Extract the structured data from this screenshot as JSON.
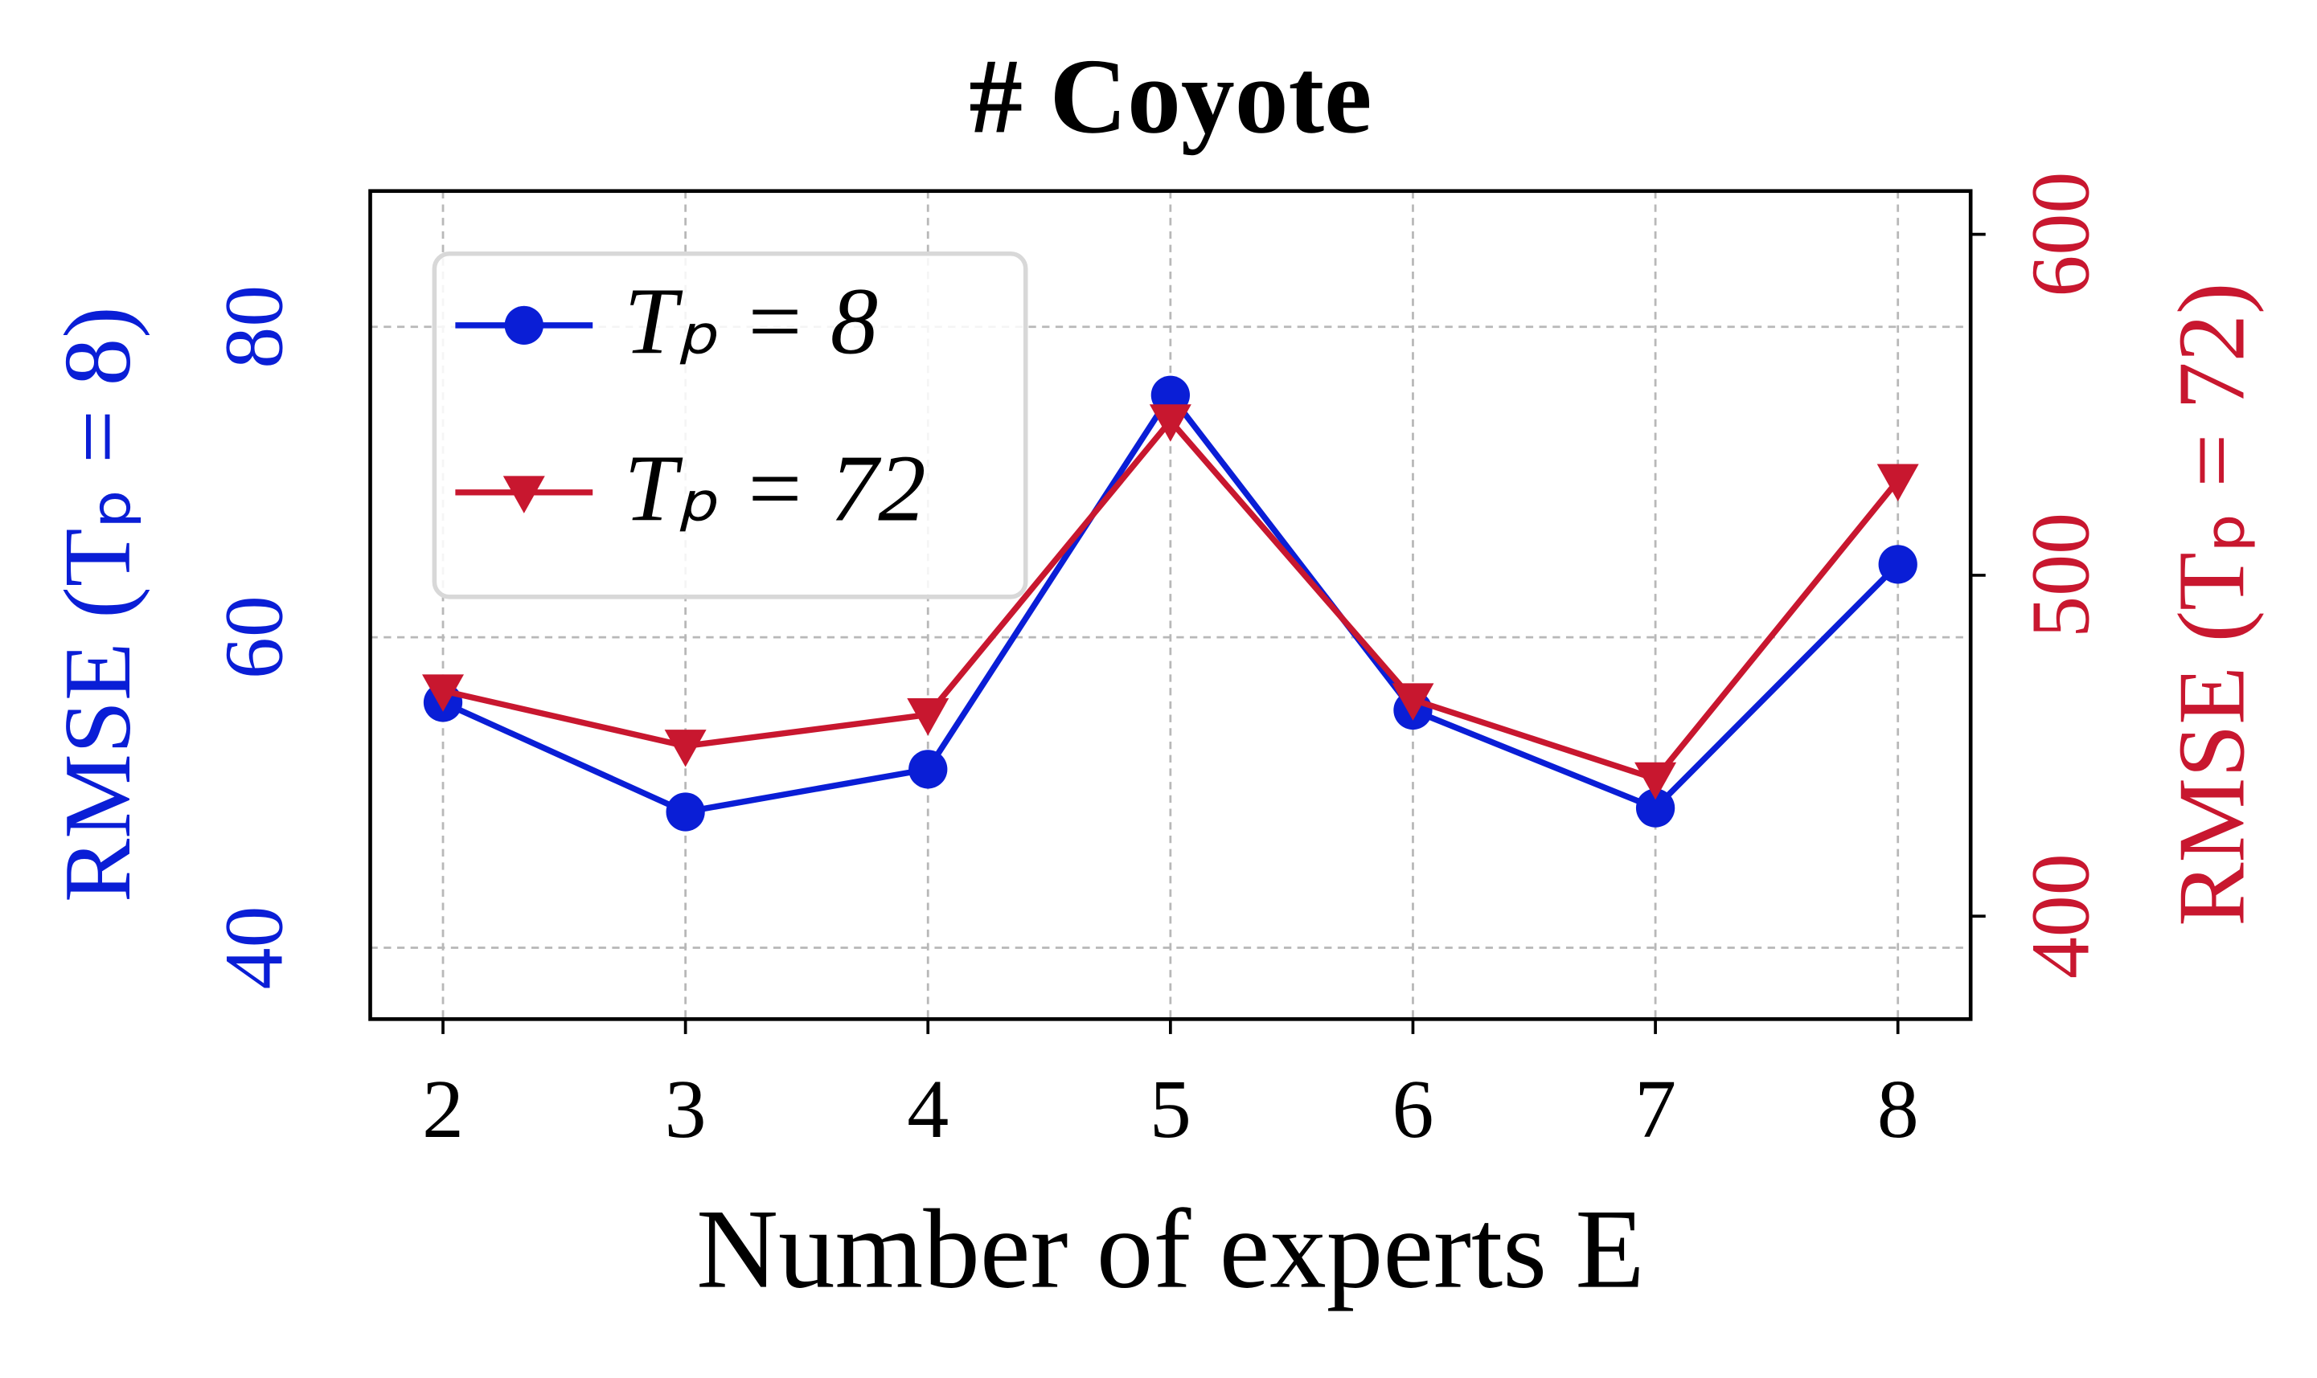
{
  "chart_data": {
    "type": "line",
    "title": "# Coyote",
    "x_label": "Number of experts E",
    "y_label": "RMSE (Tₚ = 8)",
    "y2_label": "RMSE (Tₚ = 72)",
    "x": [
      2,
      3,
      4,
      5,
      6,
      7,
      8
    ],
    "xlim": [
      1.7,
      8.3
    ],
    "xticks": [
      2,
      3,
      4,
      5,
      6,
      7,
      8
    ],
    "ylim": [
      35.4,
      88.75
    ],
    "yticks": [
      40,
      60,
      80
    ],
    "y2lim": [
      369.8,
      612.7
    ],
    "y2ticks": [
      400,
      500,
      600
    ],
    "grid": true,
    "legend": "upper left",
    "series": [
      {
        "name": "Tₚ = 8",
        "color": "#0a1ed6",
        "marker": "circle",
        "values": [
          55.8,
          48.75,
          51.5,
          75.6,
          55.3,
          49.0,
          64.7
        ]
      },
      {
        "name": "Tₚ = 72",
        "color": "#c8172f",
        "marker": "triangle-down",
        "axis": "y2",
        "values": [
          466.1,
          449.9,
          459.1,
          545.3,
          463.5,
          440.3,
          527.8
        ]
      }
    ]
  }
}
